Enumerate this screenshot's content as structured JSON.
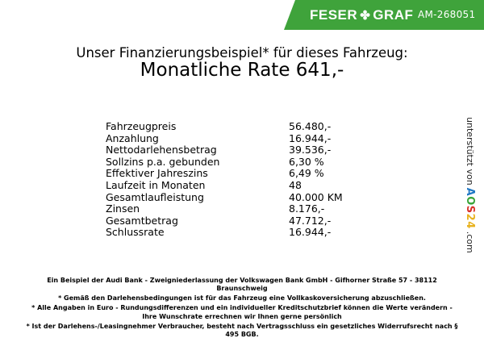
{
  "header": {
    "brand_left": "FESER",
    "brand_right": "GRAF",
    "logo_icon": "clover-icon",
    "reference": "AM-268051",
    "color": "#3fa33b"
  },
  "title": {
    "line1": "Unser Finanzierungsbeispiel* für dieses Fahrzeug:",
    "line2": "Monatliche Rate 641,-"
  },
  "rows": [
    {
      "label": "Fahrzeugpreis",
      "value": "56.480,-"
    },
    {
      "label": "Anzahlung",
      "value": "16.944,-"
    },
    {
      "label": "Nettodarlehensbetrag",
      "value": "39.536,-"
    },
    {
      "label": "Sollzins p.a. gebunden",
      "value": "6,30 %"
    },
    {
      "label": "Effektiver Jahreszins",
      "value": "6,49 %"
    },
    {
      "label": "Laufzeit in Monaten",
      "value": "48"
    },
    {
      "label": "Gesamtlaufleistung",
      "value": "40.000 KM"
    },
    {
      "label": "Zinsen",
      "value": "8.176,-"
    },
    {
      "label": "Gesamtbetrag",
      "value": "47.712,-"
    },
    {
      "label": "Schlussrate",
      "value": "16.944,-"
    }
  ],
  "side": {
    "prefix": "unterstützt von",
    "logo": "AOS24",
    "suffix": ".com"
  },
  "footer": [
    "Ein Beispiel der Audi Bank - Zweigniederlassung der Volkswagen Bank GmbH - Gifhorner Straße 57 - 38112 Braunschweig",
    "* Gemäß den Darlehensbedingungen ist für das Fahrzeug eine Vollkaskoversicherung abzuschließen.",
    "* Alle Angaben in Euro - Rundungsdifferenzen und ein individueller Kreditschutzbrief können die Werte verändern - Ihre Wunschrate errechnen wir Ihnen gerne persönlich",
    "* Ist der Darlehens-/Leasingnehmer Verbraucher, besteht nach Vertragsschluss ein gesetzliches Widerrufsrecht nach § 495 BGB."
  ]
}
